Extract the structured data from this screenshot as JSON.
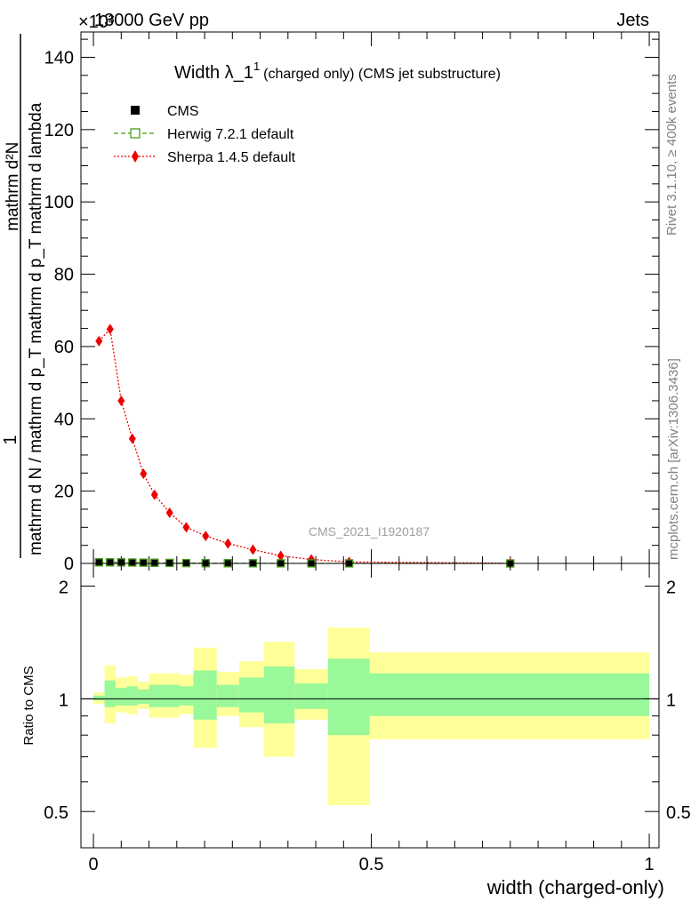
{
  "header": {
    "energy_label": "13000 GeV pp",
    "process_label": "Jets",
    "exponent_label": "×10³",
    "rivet_label": "Rivet 3.1.10, ≥ 400k events",
    "mcplots_label": "mcplots.cern.ch [arXiv:1306.3436]",
    "analysis_label": "CMS_2021_I1920187"
  },
  "chart_data": [
    {
      "type": "line",
      "title": "Width λ_1",
      "title_sup": "1",
      "title_suffix": "(charged only) (CMS jet substructure)",
      "ylabel_top": "1",
      "ylabel_num": "mathrm d²N",
      "ylabel_den": "mathrm d N / mathrm d p_T mathrm d p_T mathrm d lambda",
      "xlim": [
        0,
        1
      ],
      "ylim": [
        0,
        147
      ],
      "yticks": [
        0,
        20,
        40,
        60,
        80,
        100,
        120,
        140
      ],
      "legend_position": "top-left",
      "legend": [
        {
          "name": "CMS",
          "color": "#000000",
          "marker": "square"
        },
        {
          "name": "Herwig 7.2.1 default",
          "color": "#4a9c1c",
          "marker": "open-square",
          "dash": "dashed"
        },
        {
          "name": "Sherpa 1.4.5 default",
          "color": "#ee0000",
          "marker": "diamond",
          "dash": "dotted"
        }
      ],
      "series": [
        {
          "name": "Sherpa 1.4.5 default",
          "x": [
            0.01,
            0.03,
            0.05,
            0.07,
            0.09,
            0.11,
            0.137,
            0.167,
            0.202,
            0.242,
            0.287,
            0.337,
            0.392,
            0.46,
            0.75
          ],
          "y": [
            61.5,
            64.8,
            45.0,
            34.5,
            24.8,
            19.0,
            14.0,
            10.0,
            7.6,
            5.5,
            3.8,
            2.1,
            1.1,
            0.4,
            0.05
          ]
        },
        {
          "name": "CMS",
          "x": [
            0.01,
            0.03,
            0.05,
            0.07,
            0.09,
            0.11,
            0.137,
            0.167,
            0.202,
            0.242,
            0.287,
            0.337,
            0.392,
            0.46,
            0.75
          ],
          "y": [
            0.3,
            0.3,
            0.3,
            0.25,
            0.22,
            0.18,
            0.14,
            0.1,
            0.08,
            0.06,
            0.04,
            0.02,
            0.01,
            0.005,
            0.001
          ]
        },
        {
          "name": "Herwig 7.2.1 default",
          "x": [
            0.01,
            0.03,
            0.05,
            0.07,
            0.09,
            0.11,
            0.137,
            0.167,
            0.202,
            0.242,
            0.287,
            0.337,
            0.392,
            0.46,
            0.75
          ],
          "y": [
            0.3,
            0.3,
            0.3,
            0.25,
            0.22,
            0.18,
            0.14,
            0.1,
            0.08,
            0.06,
            0.04,
            0.02,
            0.01,
            0.005,
            0.001
          ]
        }
      ]
    },
    {
      "type": "area",
      "ylabel": "Ratio to CMS",
      "xlabel": "width (charged-only)",
      "xlim": [
        0,
        1
      ],
      "ylim": [
        0.4,
        2.3
      ],
      "xticks": [
        0,
        0.5,
        1
      ],
      "xtick_labels": [
        "0",
        "0.5",
        "1"
      ],
      "yticks": [
        0.5,
        1,
        2
      ],
      "ytick_labels": [
        "0.5",
        "1",
        "2"
      ],
      "reference_line": 1,
      "band_colors": {
        "outer": "#ffff99",
        "inner": "#99f899"
      },
      "bins": [
        {
          "lo": 0.0,
          "hi": 0.02,
          "outer": [
            0.97,
            1.04
          ],
          "inner": [
            0.99,
            1.02
          ]
        },
        {
          "lo": 0.02,
          "hi": 0.04,
          "outer": [
            0.86,
            1.23
          ],
          "inner": [
            0.95,
            1.12
          ]
        },
        {
          "lo": 0.04,
          "hi": 0.06,
          "outer": [
            0.92,
            1.14
          ],
          "inner": [
            0.96,
            1.07
          ]
        },
        {
          "lo": 0.06,
          "hi": 0.08,
          "outer": [
            0.91,
            1.15
          ],
          "inner": [
            0.96,
            1.08
          ]
        },
        {
          "lo": 0.08,
          "hi": 0.1,
          "outer": [
            0.94,
            1.11
          ],
          "inner": [
            0.97,
            1.06
          ]
        },
        {
          "lo": 0.1,
          "hi": 0.12,
          "outer": [
            0.89,
            1.17
          ],
          "inner": [
            0.95,
            1.09
          ]
        },
        {
          "lo": 0.12,
          "hi": 0.155,
          "outer": [
            0.89,
            1.17
          ],
          "inner": [
            0.95,
            1.09
          ]
        },
        {
          "lo": 0.155,
          "hi": 0.18,
          "outer": [
            0.91,
            1.16
          ],
          "inner": [
            0.96,
            1.08
          ]
        },
        {
          "lo": 0.18,
          "hi": 0.222,
          "outer": [
            0.74,
            1.37
          ],
          "inner": [
            0.88,
            1.19
          ]
        },
        {
          "lo": 0.222,
          "hi": 0.262,
          "outer": [
            0.9,
            1.18
          ],
          "inner": [
            0.95,
            1.09
          ]
        },
        {
          "lo": 0.262,
          "hi": 0.307,
          "outer": [
            0.84,
            1.26
          ],
          "inner": [
            0.92,
            1.14
          ]
        },
        {
          "lo": 0.307,
          "hi": 0.362,
          "outer": [
            0.7,
            1.42
          ],
          "inner": [
            0.86,
            1.22
          ]
        },
        {
          "lo": 0.362,
          "hi": 0.422,
          "outer": [
            0.88,
            1.2
          ],
          "inner": [
            0.94,
            1.1
          ]
        },
        {
          "lo": 0.422,
          "hi": 0.497,
          "outer": [
            0.52,
            1.55
          ],
          "inner": [
            0.8,
            1.28
          ]
        },
        {
          "lo": 0.497,
          "hi": 1.0,
          "outer": [
            0.78,
            1.33
          ],
          "inner": [
            0.9,
            1.17
          ]
        }
      ]
    }
  ]
}
